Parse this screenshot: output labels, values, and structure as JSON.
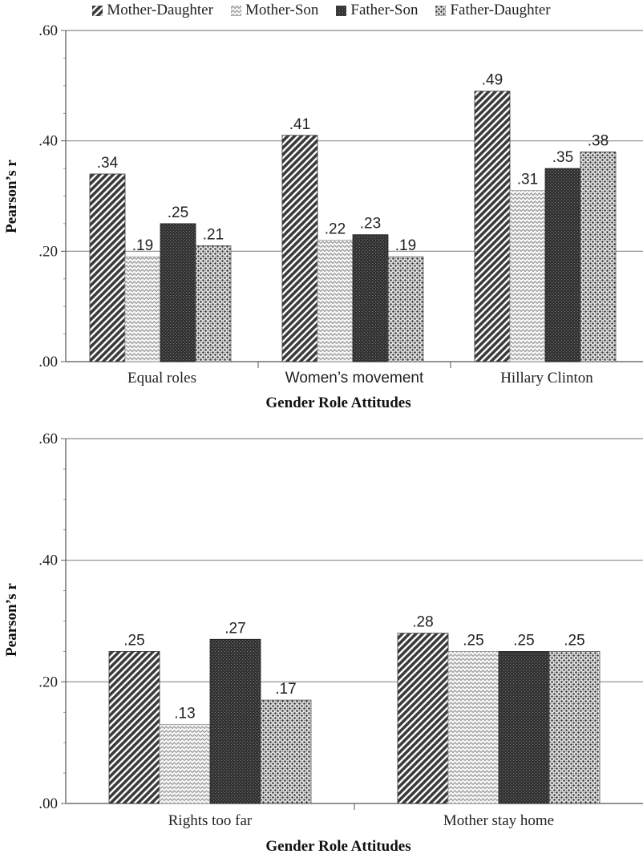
{
  "legend": [
    {
      "label": "Mother-Daughter",
      "pattern": "diagonal-hatch",
      "color": "#4a4a4a"
    },
    {
      "label": "Mother-Son",
      "pattern": "zigzag-light",
      "color": "#9a9a9a"
    },
    {
      "label": "Father-Son",
      "pattern": "dense-dark-grid",
      "color": "#3a3a3a"
    },
    {
      "label": "Father-Daughter",
      "pattern": "dotted-speckle",
      "color": "#5a5a5a"
    }
  ],
  "chart_data": [
    {
      "type": "bar",
      "categories": [
        "Equal roles",
        "Women’s movement",
        "Hillary Clinton"
      ],
      "series": [
        {
          "name": "Mother-Daughter",
          "values": [
            0.34,
            0.41,
            0.49
          ],
          "labels": [
            ".34",
            ".41",
            ".49"
          ]
        },
        {
          "name": "Mother-Son",
          "values": [
            0.19,
            0.22,
            0.31
          ],
          "labels": [
            ".19",
            ".22",
            ".31"
          ]
        },
        {
          "name": "Father-Son",
          "values": [
            0.25,
            0.23,
            0.35
          ],
          "labels": [
            ".25",
            ".23",
            ".35"
          ]
        },
        {
          "name": "Father-Daughter",
          "values": [
            0.21,
            0.19,
            0.38
          ],
          "labels": [
            ".21",
            ".19",
            ".38"
          ]
        }
      ],
      "xlabel": "Gender Role Attitudes",
      "ylabel": "Pearson’s r",
      "ylim": [
        0,
        0.6
      ],
      "yticks": [
        0,
        0.2,
        0.4,
        0.6
      ],
      "ytick_labels": [
        ".00",
        ".20",
        ".40",
        ".60"
      ],
      "grid": true
    },
    {
      "type": "bar",
      "categories": [
        "Rights too far",
        "Mother stay home"
      ],
      "series": [
        {
          "name": "Mother-Daughter",
          "values": [
            0.25,
            0.28
          ],
          "labels": [
            ".25",
            ".28"
          ]
        },
        {
          "name": "Mother-Son",
          "values": [
            0.13,
            0.25
          ],
          "labels": [
            ".13",
            ".25"
          ]
        },
        {
          "name": "Father-Son",
          "values": [
            0.27,
            0.25
          ],
          "labels": [
            ".27",
            ".25"
          ]
        },
        {
          "name": "Father-Daughter",
          "values": [
            0.17,
            0.25
          ],
          "labels": [
            ".17",
            ".25"
          ]
        }
      ],
      "xlabel": "Gender Role Attitudes",
      "ylabel": "Pearson’s r",
      "ylim": [
        0,
        0.6
      ],
      "yticks": [
        0,
        0.2,
        0.4,
        0.6
      ],
      "ytick_labels": [
        ".00",
        ".20",
        ".40",
        ".60"
      ],
      "grid": true
    }
  ]
}
